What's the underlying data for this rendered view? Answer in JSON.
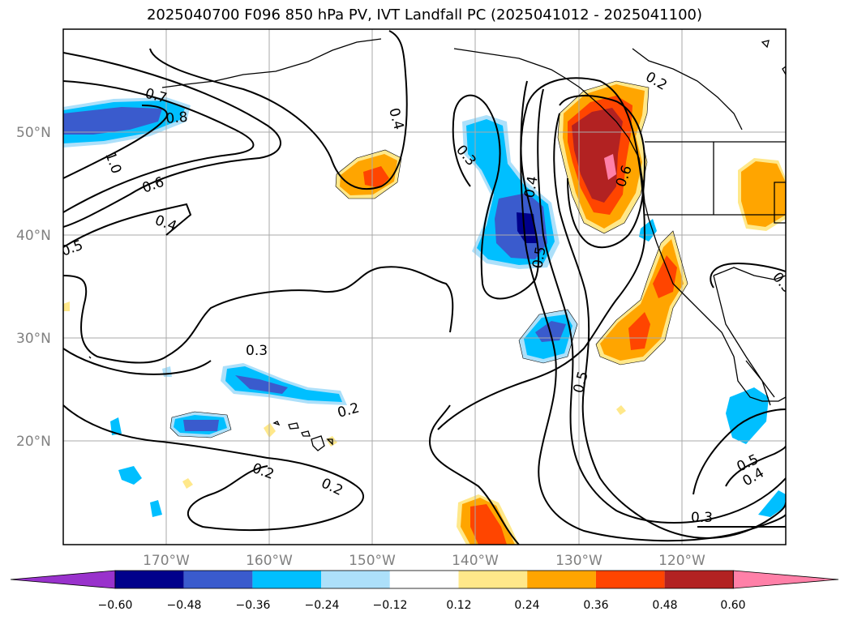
{
  "title": "2025040700 F096 850 hPa PV, IVT Landfall PC (2025041012 - 2025041100)",
  "axes": {
    "lon_ticks": [
      "170°W",
      "160°W",
      "150°W",
      "140°W",
      "130°W",
      "120°W"
    ],
    "lat_ticks": [
      "50°N",
      "40°N",
      "30°N",
      "20°N"
    ]
  },
  "colorbar": {
    "ticks": [
      "−0.60",
      "−0.48",
      "−0.36",
      "−0.24",
      "−0.12",
      "0.12",
      "0.24",
      "0.36",
      "0.48",
      "0.60"
    ],
    "colors": [
      "#9932CC",
      "#00008B",
      "#3A5BCD",
      "#00BFFF",
      "#ADE0FA",
      "#FFFFFF",
      "#FFE88A",
      "#FFA500",
      "#FF4500",
      "#B22222",
      "#FF80A8"
    ]
  },
  "contour_labels": [
    "0.7",
    "0.8",
    "1.0",
    "0.6",
    "0.4",
    "0.5",
    "0.4",
    "0.3",
    "0.4",
    "0.5",
    "0.6",
    "0.2",
    "0.3",
    "0.2",
    "0.2",
    "0.2",
    "0.5",
    "0.5",
    "0.4",
    "0.3",
    "0.5"
  ],
  "chart_data": {
    "type": "contour map",
    "title": "2025040700 F096 850 hPa PV, IVT Landfall PC (2025041012 - 2025041100)",
    "lon_range": [
      180,
      110
    ],
    "lat_range": [
      10,
      60
    ],
    "filled_levels": [
      -0.6,
      -0.48,
      -0.36,
      -0.24,
      -0.12,
      0.12,
      0.24,
      0.36,
      0.48,
      0.6
    ],
    "contour_levels_shown": [
      0.2,
      0.3,
      0.4,
      0.5,
      0.6,
      0.7,
      0.8,
      1.0
    ],
    "grid": true,
    "colorbar": "horizontal bottom"
  }
}
